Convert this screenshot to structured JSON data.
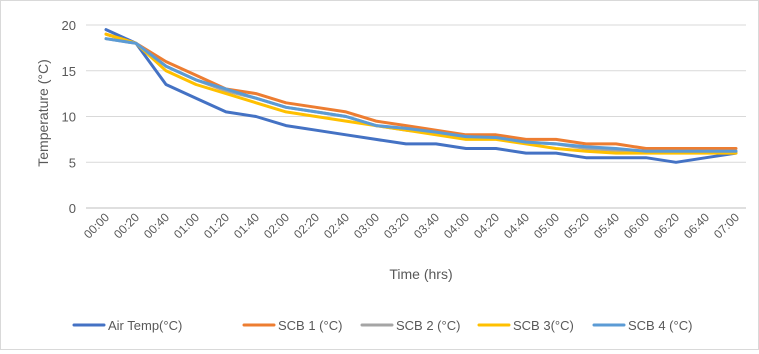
{
  "chart_data": {
    "type": "line",
    "title": "",
    "xlabel": "Time (hrs)",
    "ylabel": "Temperature (°C)",
    "ylim": [
      0,
      20
    ],
    "yticks": [
      0,
      5,
      10,
      15,
      20
    ],
    "grid": "horizontal",
    "legend_position": "bottom",
    "categories": [
      "00:00",
      "00:20",
      "00:40",
      "01:00",
      "01:20",
      "01:40",
      "02:00",
      "02:20",
      "02:40",
      "03:00",
      "03:20",
      "03:40",
      "04:00",
      "04:20",
      "04:40",
      "05:00",
      "05:20",
      "05:40",
      "06:00",
      "06:20",
      "06:40",
      "07:00"
    ],
    "series": [
      {
        "name": "Air Temp(°C)",
        "color": "#4472c4",
        "values": [
          19.5,
          18,
          13.5,
          12,
          10.5,
          10,
          9,
          8.5,
          8,
          7.5,
          7,
          7,
          6.5,
          6.5,
          6,
          6,
          5.5,
          5.5,
          5.5,
          5,
          5.5,
          6
        ]
      },
      {
        "name": "SCB 1 (°C)",
        "color": "#ed7d31",
        "values": [
          19,
          18,
          16,
          14.5,
          13,
          12.5,
          11.5,
          11,
          10.5,
          9.5,
          9,
          8.5,
          8,
          8,
          7.5,
          7.5,
          7,
          7,
          6.5,
          6.5,
          6.5,
          6.5
        ]
      },
      {
        "name": "SCB 2 (°C)",
        "color": "#a5a5a5",
        "values": [
          18.5,
          18,
          15.5,
          14,
          12.8,
          12,
          11,
          10.5,
          10,
          9,
          8.5,
          8.2,
          7.8,
          7.6,
          7.2,
          7,
          6.5,
          6.3,
          6.2,
          6.2,
          6.2,
          6.2
        ]
      },
      {
        "name": "SCB 3(°C)",
        "color": "#ffc000",
        "values": [
          19,
          18,
          15,
          13.5,
          12.5,
          11.5,
          10.5,
          10,
          9.5,
          9,
          8.5,
          8,
          7.5,
          7.5,
          7,
          6.5,
          6.2,
          6,
          6,
          6,
          6,
          6
        ]
      },
      {
        "name": "SCB 4 (°C)",
        "color": "#5b9bd5",
        "values": [
          18.5,
          18,
          15.5,
          14,
          13,
          12,
          11,
          10.5,
          10,
          9,
          8.7,
          8.3,
          7.8,
          7.7,
          7.2,
          7,
          6.7,
          6.5,
          6.2,
          6.2,
          6.2,
          6.2
        ]
      }
    ]
  }
}
